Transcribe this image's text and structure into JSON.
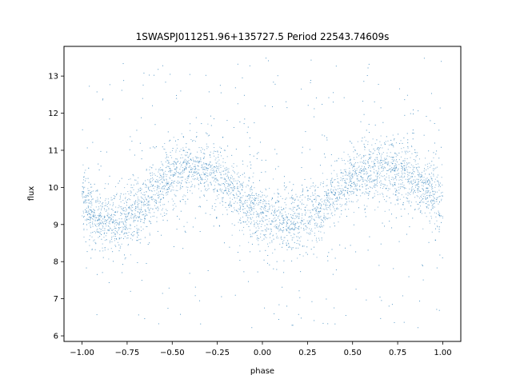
{
  "chart_data": {
    "type": "scatter",
    "title": "1SWASPJ011251.96+135727.5 Period 22543.74609s",
    "xlabel": "phase",
    "ylabel": "flux",
    "xlim": [
      -1.1,
      1.1
    ],
    "ylim": [
      5.85,
      13.8
    ],
    "x_ticks": [
      -1.0,
      -0.75,
      -0.5,
      -0.25,
      0.0,
      0.25,
      0.5,
      0.75,
      1.0
    ],
    "x_tick_labels": [
      "−1.00",
      "−0.75",
      "−0.50",
      "−0.25",
      "0.00",
      "0.25",
      "0.50",
      "0.75",
      "1.00"
    ],
    "y_ticks": [
      6,
      7,
      8,
      9,
      10,
      11,
      12,
      13
    ],
    "y_tick_labels": [
      "6",
      "7",
      "8",
      "9",
      "10",
      "11",
      "12",
      "13"
    ],
    "grid": false,
    "marker_color": "#1f77b4",
    "series": [
      {
        "phase_range": [
          -1.0,
          1.0
        ],
        "trend_points": [
          [
            -1.0,
            9.55
          ],
          [
            -0.9,
            9.15
          ],
          [
            -0.8,
            9.1
          ],
          [
            -0.7,
            9.35
          ],
          [
            -0.6,
            9.85
          ],
          [
            -0.5,
            10.3
          ],
          [
            -0.4,
            10.5
          ],
          [
            -0.3,
            10.45
          ],
          [
            -0.2,
            10.1
          ],
          [
            -0.1,
            9.65
          ],
          [
            0.0,
            9.25
          ],
          [
            0.1,
            9.05
          ],
          [
            0.2,
            9.1
          ],
          [
            0.3,
            9.4
          ],
          [
            0.4,
            9.85
          ],
          [
            0.5,
            10.25
          ],
          [
            0.6,
            10.45
          ],
          [
            0.7,
            10.5
          ],
          [
            0.8,
            10.3
          ],
          [
            0.9,
            9.95
          ],
          [
            1.0,
            9.55
          ]
        ],
        "core_scatter": 0.38,
        "outlier_range": [
          6.2,
          13.5
        ]
      }
    ]
  }
}
